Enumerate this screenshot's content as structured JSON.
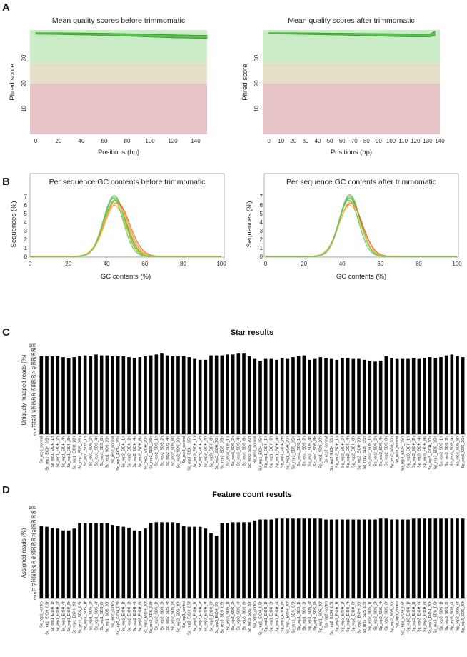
{
  "panels": {
    "a": "A",
    "b": "B",
    "c": "C",
    "d": "D"
  },
  "chart_data": [
    {
      "id": "qual-before",
      "type": "line",
      "title": "Mean quality scores before trimmomatic",
      "xlabel": "Positions (bp)",
      "ylabel": "Phred score",
      "xlim": [
        -5,
        150
      ],
      "ylim": [
        0,
        41
      ],
      "xticks": [
        0,
        20,
        40,
        60,
        80,
        100,
        120,
        140
      ],
      "yticks": [
        10,
        20,
        30
      ],
      "zones": [
        {
          "from": 0,
          "to": 20,
          "color": "#e6c3c6"
        },
        {
          "from": 20,
          "to": 28,
          "color": "#e5dec6"
        },
        {
          "from": 28,
          "to": 41,
          "color": "#c9ecc6"
        }
      ],
      "series_color": "#5bbf4f",
      "series": [
        {
          "name": "upper",
          "x": [
            0,
            20,
            40,
            60,
            80,
            100,
            120,
            140,
            150
          ],
          "y": [
            39.9,
            39.9,
            39.8,
            39.7,
            39.5,
            39.3,
            39.1,
            38.9,
            38.9
          ]
        },
        {
          "name": "lower",
          "x": [
            0,
            20,
            40,
            60,
            80,
            100,
            120,
            140,
            150
          ],
          "y": [
            39.4,
            39.3,
            39.1,
            38.9,
            38.6,
            38.3,
            38.0,
            37.8,
            37.7
          ]
        }
      ]
    },
    {
      "id": "qual-after",
      "type": "line",
      "title": "Mean quality scores after trimmomatic",
      "xlabel": "Positions (bp)",
      "ylabel": "Phred score",
      "xlim": [
        -5,
        140
      ],
      "ylim": [
        0,
        41
      ],
      "xticks": [
        0,
        10,
        20,
        30,
        40,
        50,
        60,
        70,
        80,
        90,
        100,
        110,
        120,
        130,
        140
      ],
      "yticks": [
        10,
        20,
        30
      ],
      "zones": [
        {
          "from": 0,
          "to": 20,
          "color": "#e6c3c6"
        },
        {
          "from": 20,
          "to": 28,
          "color": "#e5dec6"
        },
        {
          "from": 28,
          "to": 41,
          "color": "#c9ecc6"
        }
      ],
      "series_color": "#5bbf4f",
      "series": [
        {
          "name": "upper",
          "x": [
            0,
            20,
            40,
            60,
            80,
            100,
            120,
            132,
            136
          ],
          "y": [
            39.9,
            39.9,
            39.8,
            39.7,
            39.6,
            39.5,
            39.3,
            39.4,
            40.5
          ]
        },
        {
          "name": "lower",
          "x": [
            0,
            20,
            40,
            60,
            80,
            100,
            120,
            132,
            136
          ],
          "y": [
            39.5,
            39.4,
            39.2,
            39.0,
            38.8,
            38.5,
            38.3,
            38.4,
            38.8
          ]
        }
      ]
    },
    {
      "id": "gc-before",
      "type": "line",
      "title": "Per sequence GC contents before trimmomatic",
      "xlabel": "GC contents (%)",
      "ylabel": "Sequences (%)",
      "xlim": [
        0,
        100
      ],
      "ylim": [
        0,
        7.5
      ],
      "xticks": [
        0,
        20,
        40,
        60,
        80,
        100
      ],
      "yticks": [
        0,
        1,
        2,
        3,
        4,
        5,
        6,
        7
      ],
      "curves": [
        {
          "mu": 44,
          "sigma": 5.6,
          "peak": 7.1,
          "color": "#5bbf4f"
        },
        {
          "mu": 44,
          "sigma": 5.4,
          "peak": 6.9,
          "color": "#66c455"
        },
        {
          "mu": 44.5,
          "sigma": 5.8,
          "peak": 6.6,
          "color": "#4cae45"
        },
        {
          "mu": 45,
          "sigma": 6.2,
          "peak": 6.5,
          "color": "#f2a13a"
        },
        {
          "mu": 45.5,
          "sigma": 6.5,
          "peak": 6.3,
          "color": "#e8683a"
        },
        {
          "mu": 45,
          "sigma": 6.0,
          "peak": 6.2,
          "color": "#f5c04a"
        },
        {
          "mu": 44,
          "sigma": 5.9,
          "peak": 6.0,
          "color": "#f0b23c"
        },
        {
          "mu": 43.5,
          "sigma": 5.2,
          "peak": 6.8,
          "color": "#6ac95a"
        }
      ]
    },
    {
      "id": "gc-after",
      "type": "line",
      "title": "Per sequence GC contents after trimmomatic",
      "xlabel": "GC contents (%)",
      "ylabel": "Sequences (%)",
      "xlim": [
        0,
        100
      ],
      "ylim": [
        0,
        7.5
      ],
      "xticks": [
        0,
        20,
        40,
        60,
        80,
        100
      ],
      "yticks": [
        0,
        1,
        2,
        3,
        4,
        5,
        6,
        7
      ],
      "curves": [
        {
          "mu": 44,
          "sigma": 5.4,
          "peak": 7.2,
          "color": "#5bbf4f"
        },
        {
          "mu": 44,
          "sigma": 5.3,
          "peak": 7.0,
          "color": "#66c455"
        },
        {
          "mu": 44,
          "sigma": 5.6,
          "peak": 6.8,
          "color": "#4cae45"
        },
        {
          "mu": 44.5,
          "sigma": 5.9,
          "peak": 6.4,
          "color": "#f2a13a"
        },
        {
          "mu": 44.5,
          "sigma": 6.1,
          "peak": 6.2,
          "color": "#e8683a"
        },
        {
          "mu": 44,
          "sigma": 5.8,
          "peak": 6.0,
          "color": "#f5c04a"
        },
        {
          "mu": 43.5,
          "sigma": 5.2,
          "peak": 6.6,
          "color": "#6ac95a"
        }
      ]
    },
    {
      "id": "star",
      "type": "bar",
      "title": "Star results",
      "ylabel": "Uniquely mapped  reads (%)",
      "ylim": [
        0,
        100
      ],
      "yticks": [
        0,
        5,
        10,
        15,
        20,
        25,
        30,
        35,
        40,
        45,
        50,
        55,
        60,
        65,
        70,
        75,
        80,
        85,
        90,
        95,
        100
      ],
      "bar_color": "#000000",
      "categories": [
        "Sc_rep1_control",
        "Sc_rep1_EtOH_0.5h",
        "Sc_rep1_EtOH_1h",
        "Sc_rep1_EtOH_2h",
        "Sc_rep1_EtOH_4h",
        "Sc_rep1_EtOH_8h",
        "Sc_rep1_EtOH_20h",
        "Sc_rep1_SDS_0.5h",
        "Sc_rep1_SDS_1h",
        "Sc_rep1_SDS_2h",
        "Sc_rep1_SDS_4h",
        "Sc_rep1_SDS_8h",
        "Sc_rep1_SDS_20h",
        "Sc_rep2_control",
        "Sc_rep2_EtOH_0.5h",
        "Sc_rep2_EtOH_1h",
        "Sc_rep2_EtOH_2h",
        "Sc_rep2_EtOH_4h",
        "Sc_rep2_EtOH_8h",
        "Sc_rep2_EtOH_20h",
        "Sc_rep2_SDS_0.5h",
        "Sc_rep2_SDS_1h",
        "Sc_rep2_SDS_2h",
        "Sc_rep2_SDS_4h",
        "Sc_rep2_SDS_8h",
        "Sc_rep2_SDS_20h",
        "Sc_rep3_control",
        "Sc_rep3_EtOH_0.5h",
        "Sc_rep3_EtOH_1h",
        "Sc_rep3_EtOH_2h",
        "Sc_rep3_EtOH_4h",
        "Sc_rep3_EtOH_8h",
        "Sc_rep3_EtOH_20h",
        "Sc_rep3_SDS_0.5h",
        "Sc_rep3_SDS_1h",
        "Sc_rep3_SDS_2h",
        "Sc_rep3_SDS_4h",
        "Sc_rep3_SDS_8h",
        "Sc_rep3_SDS_20h",
        "Sp_rep1_control",
        "Sp_rep1_EtOH_0.5h",
        "Sp_rep1_EtOH_1h",
        "Sp_rep1_EtOH_2h",
        "Sp_rep1_EtOH_4h",
        "Sp_rep1_EtOH_8h",
        "Sp_rep1_EtOH_20h",
        "Sp_rep1_SDS_0.5h",
        "Sp_rep1_SDS_1h",
        "Sp_rep1_SDS_2h",
        "Sp_rep1_SDS_4h",
        "Sp_rep1_SDS_8h",
        "Sp_rep1_SDS_20h",
        "Sp_rep2_control",
        "Sp_rep2_EtOH_0.5h",
        "Sp_rep2_EtOH_1h",
        "Sp_rep2_EtOH_2h",
        "Sp_rep2_EtOH_4h",
        "Sp_rep2_EtOH_8h",
        "Sp_rep2_EtOH_20h",
        "Sp_rep2_SDS_0.5h",
        "Sp_rep2_SDS_1h",
        "Sp_rep2_SDS_2h",
        "Sp_rep2_SDS_4h",
        "Sp_rep2_SDS_8h",
        "Sp_rep2_SDS_20h",
        "Sp_rep3_control",
        "Sp_rep3_EtOH_0.5h",
        "Sp_rep3_EtOH_1h",
        "Sp_rep3_EtOH_2h",
        "Sp_rep3_EtOH_4h",
        "Sp_rep3_EtOH_8h",
        "Sp_rep3_EtOH_20h",
        "Sp_rep3_SDS_0.5h",
        "Sp_rep3_SDS_1h",
        "Sp_rep3_SDS_2h",
        "Sp_rep3_SDS_4h",
        "Sp_rep3_SDS_8h",
        "Sp_rep3_SDS_20h"
      ],
      "values": [
        88,
        88,
        88,
        88,
        87,
        86,
        87,
        88,
        89,
        88,
        90,
        89,
        89,
        88,
        88,
        88,
        87,
        86,
        87,
        88,
        89,
        90,
        91,
        89,
        88,
        88,
        88,
        87,
        85,
        84,
        84,
        89,
        89,
        89,
        90,
        90,
        91,
        91,
        88,
        85,
        83,
        85,
        85,
        84,
        86,
        85,
        87,
        88,
        89,
        84,
        85,
        87,
        86,
        85,
        84,
        86,
        86,
        85,
        85,
        84,
        83,
        82,
        83,
        88,
        86,
        85,
        85,
        85,
        86,
        85,
        86,
        87,
        86,
        87,
        89,
        90,
        88,
        87
      ]
    },
    {
      "id": "feature",
      "type": "bar",
      "title": "Feature count results",
      "ylabel": "Assigned reads (%)",
      "ylim": [
        0,
        100
      ],
      "yticks": [
        0,
        5,
        10,
        15,
        20,
        25,
        30,
        35,
        40,
        45,
        50,
        55,
        60,
        65,
        70,
        75,
        80,
        85,
        90,
        95,
        100
      ],
      "bar_color": "#000000",
      "categories": [
        "Sc_rep1_control",
        "Sc_rep1_EtOH_0.5h",
        "Sc_rep1_EtOH_1h",
        "Sc_rep1_EtOH_2h",
        "Sc_rep1_EtOH_4h",
        "Sc_rep1_EtOH_8h",
        "Sc_rep1_EtOH_20h",
        "Sc_rep1_SDS_0.5h",
        "Sc_rep1_SDS_1h",
        "Sc_rep1_SDS_2h",
        "Sc_rep1_SDS_4h",
        "Sc_rep1_SDS_8h",
        "Sc_rep1_SDS_20h",
        "Sc_rep2_control",
        "Sc_rep2_EtOH_0.5h",
        "Sc_rep2_EtOH_1h",
        "Sc_rep2_EtOH_2h",
        "Sc_rep2_EtOH_4h",
        "Sc_rep2_EtOH_8h",
        "Sc_rep2_EtOH_20h",
        "Sc_rep2_SDS_0.5h",
        "Sc_rep2_SDS_1h",
        "Sc_rep2_SDS_2h",
        "Sc_rep2_SDS_4h",
        "Sc_rep2_SDS_8h",
        "Sc_rep2_SDS_20h",
        "Sc_rep3_control",
        "Sc_rep3_EtOH_0.5h",
        "Sc_rep3_EtOH_1h",
        "Sc_rep3_EtOH_2h",
        "Sc_rep3_EtOH_4h",
        "Sc_rep3_EtOH_8h",
        "Sc_rep3_EtOH_20h",
        "Sc_rep3_SDS_0.5h",
        "Sc_rep3_SDS_1h",
        "Sc_rep3_SDS_2h",
        "Sc_rep3_SDS_4h",
        "Sc_rep3_SDS_8h",
        "Sc_rep3_SDS_20h",
        "Sp_rep1_control",
        "Sp_rep1_EtOH_0.5h",
        "Sp_rep1_EtOH_1h",
        "Sp_rep1_EtOH_2h",
        "Sp_rep1_EtOH_4h",
        "Sp_rep1_EtOH_8h",
        "Sp_rep1_EtOH_20h",
        "Sp_rep1_SDS_0.5h",
        "Sp_rep1_SDS_1h",
        "Sp_rep1_SDS_2h",
        "Sp_rep1_SDS_4h",
        "Sp_rep1_SDS_8h",
        "Sp_rep1_SDS_20h",
        "Sp_rep2_control",
        "Sp_rep2_EtOH_0.5h",
        "Sp_rep2_EtOH_1h",
        "Sp_rep2_EtOH_2h",
        "Sp_rep2_EtOH_4h",
        "Sp_rep2_EtOH_8h",
        "Sp_rep2_EtOH_20h",
        "Sp_rep2_SDS_0.5h",
        "Sp_rep2_SDS_1h",
        "Sp_rep2_SDS_2h",
        "Sp_rep2_SDS_4h",
        "Sp_rep2_SDS_8h",
        "Sp_rep2_SDS_20h",
        "Sp_rep3_control",
        "Sp_rep3_EtOH_0.5h",
        "Sp_rep3_EtOH_1h",
        "Sp_rep3_EtOH_2h",
        "Sp_rep3_EtOH_4h",
        "Sp_rep3_EtOH_8h",
        "Sp_rep3_EtOH_20h",
        "Sp_rep3_SDS_0.5h",
        "Sp_rep3_SDS_1h",
        "Sp_rep3_SDS_2h",
        "Sp_rep3_SDS_4h",
        "Sp_rep3_SDS_8h",
        "Sp_rep3_SDS_20h"
      ],
      "values": [
        80,
        79,
        78,
        77,
        75,
        75,
        77,
        83,
        83,
        83,
        83,
        83,
        83,
        81,
        80,
        79,
        78,
        75,
        74,
        77,
        83,
        84,
        84,
        84,
        84,
        83,
        80,
        79,
        79,
        79,
        77,
        72,
        69,
        83,
        83,
        84,
        84,
        84,
        84,
        86,
        87,
        87,
        87,
        88,
        88,
        88,
        88,
        88,
        88,
        88,
        88,
        88,
        87,
        87,
        87,
        87,
        87,
        87,
        87,
        87,
        87,
        87,
        88,
        88,
        87,
        87,
        87,
        87,
        88,
        88,
        88,
        88,
        88,
        88,
        88,
        88,
        88,
        88
      ]
    }
  ]
}
